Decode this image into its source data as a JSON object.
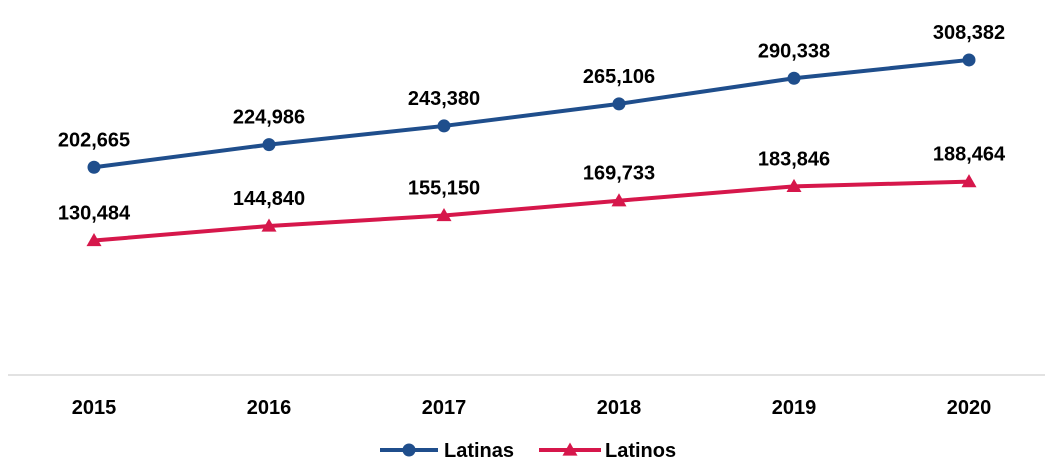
{
  "chart_data": {
    "type": "line",
    "categories": [
      "2015",
      "2016",
      "2017",
      "2018",
      "2019",
      "2020"
    ],
    "series": [
      {
        "name": "Latinas",
        "values": [
          202665,
          224986,
          243380,
          265106,
          290338,
          308382
        ],
        "labels": [
          "202,665",
          "224,986",
          "243,380",
          "265,106",
          "290,338",
          "308,382"
        ],
        "color": "#1f4e8c",
        "marker": "circle"
      },
      {
        "name": "Latinos",
        "values": [
          130484,
          144840,
          155150,
          169733,
          183846,
          188464
        ],
        "labels": [
          "130,484",
          "144,840",
          "155,150",
          "169,733",
          "183,846",
          "188,464"
        ],
        "color": "#d6174b",
        "marker": "triangle"
      }
    ],
    "ylim": [
      0,
      330000
    ],
    "grid": false,
    "legend_position": "bottom"
  }
}
